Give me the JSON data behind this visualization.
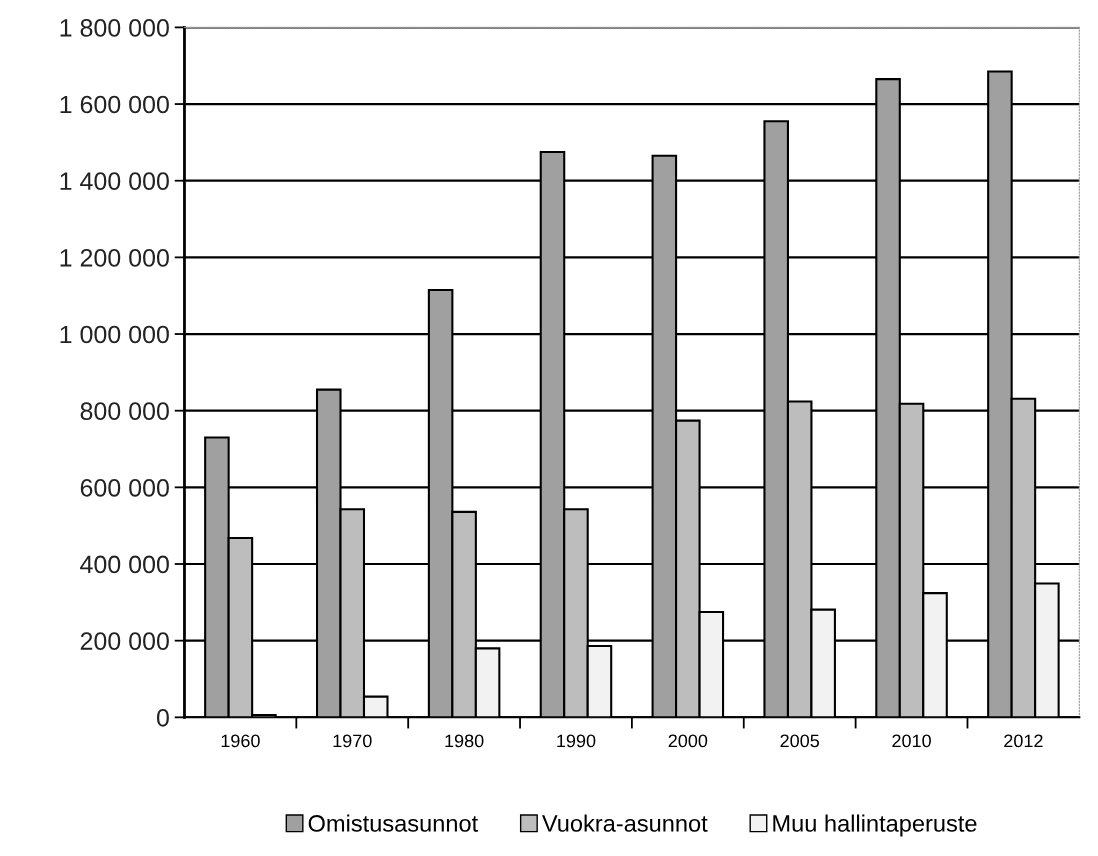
{
  "chart_data": {
    "type": "bar",
    "categories": [
      "1960",
      "1970",
      "1980",
      "1990",
      "2000",
      "2005",
      "2010",
      "2012"
    ],
    "series": [
      {
        "name": "Omistusasunnot",
        "color": "#a0a0a0",
        "values": [
          730000,
          855000,
          1115000,
          1475000,
          1465000,
          1555000,
          1665000,
          1685000
        ]
      },
      {
        "name": "Vuokra-asunnot",
        "color": "#bdbdbd",
        "values": [
          468000,
          543000,
          536000,
          543000,
          774000,
          824000,
          818000,
          831000
        ]
      },
      {
        "name": "Muu hallintaperuste",
        "color": "#f2f2f2",
        "values": [
          6000,
          54000,
          180000,
          186000,
          275000,
          281000,
          324000,
          349000
        ]
      }
    ],
    "ylim": [
      0,
      1800000
    ],
    "yticks": [
      {
        "value": 0,
        "label": "0"
      },
      {
        "value": 200000,
        "label": "200 000"
      },
      {
        "value": 400000,
        "label": "400 000"
      },
      {
        "value": 600000,
        "label": "600 000"
      },
      {
        "value": 800000,
        "label": "800 000"
      },
      {
        "value": 1000000,
        "label": "1 000 000"
      },
      {
        "value": 1200000,
        "label": "1 200 000"
      },
      {
        "value": 1400000,
        "label": "1 400 000"
      },
      {
        "value": 1600000,
        "label": "1 600 000"
      },
      {
        "value": 1800000,
        "label": "1 800 000"
      }
    ],
    "grid": "y",
    "legend": "bottom"
  }
}
